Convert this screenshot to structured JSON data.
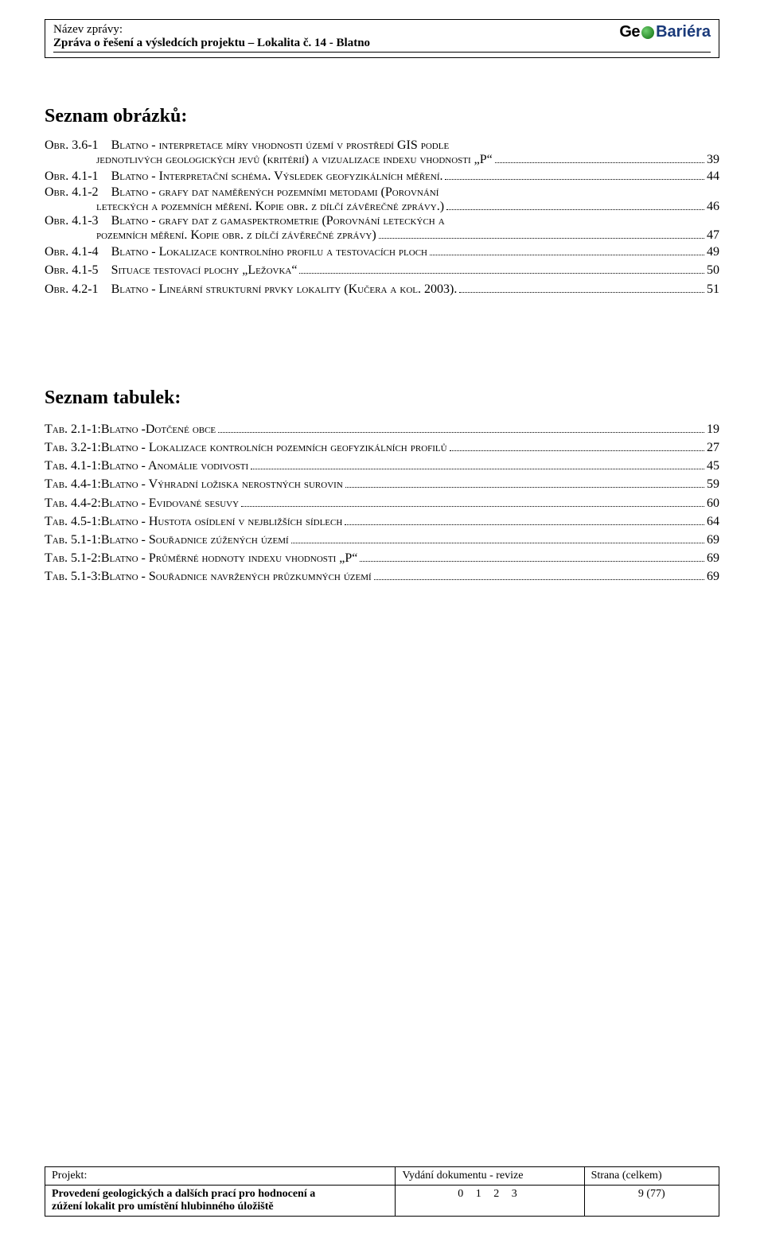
{
  "header": {
    "name_label": "Název zprávy:",
    "name_value": "Zpráva o řešení a výsledcích projektu – Lokalita č. 14 - Blatno",
    "logo": {
      "ge": "Ge",
      "bar": "Bariéra"
    }
  },
  "figures": {
    "title": "Seznam obrázků:",
    "items": [
      {
        "label": "Obr. 3.6-1",
        "text_lines": [
          "Blatno - interpretace míry vhodnosti území v prostředí GIS podle",
          "jednotlivých geologických jevů (kritérií) a vizualizace indexu vhodnosti „P“"
        ],
        "page": "39"
      },
      {
        "label": "Obr. 4.1-1",
        "text_lines": [
          "Blatno - Interpretační schéma. Výsledek geofyzikálních měření."
        ],
        "page": "44"
      },
      {
        "label": "Obr. 4.1-2",
        "text_lines": [
          "Blatno - grafy dat naměřených pozemními metodami (Porovnání",
          "leteckých a pozemních měření. Kopie obr. z dílčí závěrečné zprávy.)"
        ],
        "page": "46"
      },
      {
        "label": "Obr. 4.1-3",
        "text_lines": [
          "Blatno - grafy dat z gamaspektrometrie (Porovnání leteckých a",
          "pozemních měření. Kopie obr. z dílčí závěrečné zprávy)"
        ],
        "page": "47"
      },
      {
        "label": "Obr. 4.1-4",
        "text_lines": [
          "Blatno - Lokalizace kontrolního profilu a testovacích ploch"
        ],
        "page": "49"
      },
      {
        "label": "Obr. 4.1-5",
        "text_lines": [
          "Situace testovací plochy „Ležovka“"
        ],
        "page": "50"
      },
      {
        "label": "Obr. 4.2-1",
        "text_lines": [
          "Blatno - Lineární strukturní prvky lokality (Kučera a kol. 2003)."
        ],
        "page": "51"
      }
    ]
  },
  "tables": {
    "title": "Seznam tabulek:",
    "items": [
      {
        "label": "Tab. 2.1-1:",
        "text": "Blatno -Dotčené obce",
        "page": "19"
      },
      {
        "label": "Tab. 3.2-1:",
        "text": "Blatno - Lokalizace kontrolních pozemních geofyzikálních profilů",
        "page": "27"
      },
      {
        "label": "Tab. 4.1-1:",
        "text": "Blatno - Anomálie vodivosti",
        "page": "45"
      },
      {
        "label": "Tab. 4.4-1:",
        "text": "Blatno - Výhradní ložiska nerostných surovin",
        "page": "59"
      },
      {
        "label": "Tab. 4.4-2:",
        "text": "Blatno - Evidované sesuvy",
        "page": "60"
      },
      {
        "label": "Tab. 4.5-1:",
        "text": "Blatno - Hustota osídlení v nejbližších sídlech",
        "page": "64"
      },
      {
        "label": "Tab. 5.1-1:",
        "text": "Blatno - Souřadnice zúžených území",
        "page": "69"
      },
      {
        "label": "Tab. 5.1-2:",
        "text": "Blatno - Průměrné hodnoty indexu vhodnosti „P“",
        "page": "69"
      },
      {
        "label": "Tab. 5.1-3:",
        "text": "Blatno - Souřadnice navržených průzkumných území",
        "page": "69"
      }
    ]
  },
  "footer": {
    "project_label": "Projekt:",
    "project_text1": "Provedení geologických a dalších prací pro hodnocení a",
    "project_text2": "zúžení lokalit pro umístění hlubinného úložiště",
    "rev_label": "Vydání dokumentu - revize",
    "rev_values": "0   1   2   3",
    "page_label": "Strana (celkem)",
    "page_value": "9 (77)"
  },
  "style": {
    "page_bg": "#ffffff",
    "text_color": "#000000",
    "logo_green": "#2a8a2a",
    "logo_blue": "#1a3a7a",
    "body_font": "Times New Roman",
    "logo_font": "Arial",
    "title_fontsize": 24,
    "toc_fontsize": 16,
    "footer_fontsize": 14
  }
}
